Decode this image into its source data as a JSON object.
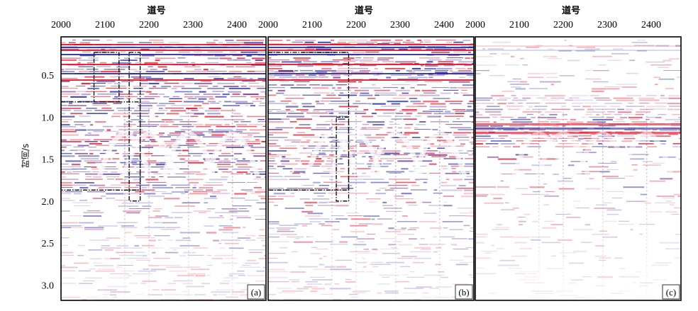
{
  "figure": {
    "y_axis": {
      "title": "时间/s",
      "ticks": [
        {
          "label": "0.5",
          "value": 0.5
        },
        {
          "label": "1.0",
          "value": 1.0
        },
        {
          "label": "1.5",
          "value": 1.5
        },
        {
          "label": "2.0",
          "value": 2.0
        },
        {
          "label": "2.5",
          "value": 2.5
        },
        {
          "label": "3.0",
          "value": 3.0
        }
      ]
    },
    "panels": [
      {
        "id": "a",
        "panel_label": "(a)",
        "x_title": "道号",
        "x_ticks": [
          "2000",
          "2100",
          "2200",
          "2300",
          "2400"
        ],
        "boxes": [
          {
            "trace_start": 2075,
            "trace_end": 2132,
            "time_start": 0.23,
            "time_end": 0.82
          },
          {
            "trace_start": 2000,
            "trace_end": 2180,
            "time_start": 0.82,
            "time_end": 1.87
          },
          {
            "trace_start": 2155,
            "trace_end": 2180,
            "time_start": 0.23,
            "time_end": 2.0
          }
        ]
      },
      {
        "id": "b",
        "panel_label": "(b)",
        "x_title": "道号",
        "x_ticks": [
          "2000",
          "2100",
          "2200",
          "2300",
          "2400"
        ],
        "boxes": [
          {
            "trace_start": 2000,
            "trace_end": 2183,
            "time_start": 0.23,
            "time_end": 1.87
          },
          {
            "trace_start": 2155,
            "trace_end": 2183,
            "time_start": 1.0,
            "time_end": 2.0
          }
        ]
      },
      {
        "id": "c",
        "panel_label": "(c)",
        "x_title": "道号",
        "x_ticks": [
          "2000",
          "2100",
          "2200",
          "2300",
          "2400"
        ],
        "boxes": []
      }
    ],
    "colors": {
      "positive": "#e2001a",
      "negative": "#1c1c9a",
      "mixed": "#6a1f7a",
      "frame": "#000000"
    }
  }
}
